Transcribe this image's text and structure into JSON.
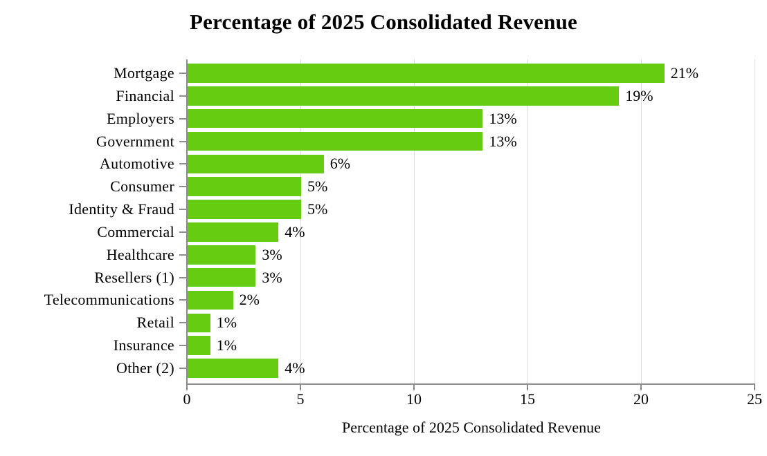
{
  "chart_data": {
    "type": "bar",
    "orientation": "horizontal",
    "title": "Percentage of 2025 Consolidated Revenue",
    "xlabel": "Percentage of 2025 Consolidated Revenue",
    "categories": [
      "Mortgage",
      "Financial",
      "Employers",
      "Government",
      "Automotive",
      "Consumer",
      "Identity & Fraud",
      "Commercial",
      "Healthcare",
      "Resellers (1)",
      "Telecommunications",
      "Retail",
      "Insurance",
      "Other (2)"
    ],
    "values": [
      21,
      19,
      13,
      13,
      6,
      5,
      5,
      4,
      3,
      3,
      2,
      1,
      1,
      4
    ],
    "value_labels": [
      "21%",
      "19%",
      "13%",
      "13%",
      "6%",
      "5%",
      "5%",
      "4%",
      "3%",
      "3%",
      "2%",
      "1%",
      "1%",
      "4%"
    ],
    "xlim": [
      0,
      25
    ],
    "xticks": [
      0,
      5,
      10,
      15,
      20,
      25
    ],
    "xtick_labels": [
      "0",
      "5",
      "10",
      "15",
      "20",
      "25"
    ],
    "grid": "vertical",
    "legend": "none",
    "bar_color": "#66cc11",
    "axis_color": "#8c8c8c",
    "gridline_color": "#dcdcdc",
    "text_color": "#000000",
    "background_color": "#ffffff"
  }
}
